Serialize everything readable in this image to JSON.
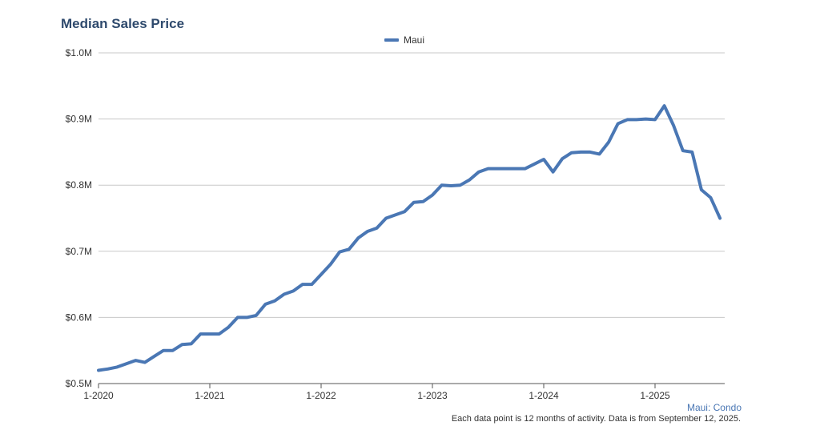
{
  "title": "Median Sales Price",
  "footer": {
    "label": "Maui: Condo",
    "note": "Each data point is 12 months of activity. Data is from September 12, 2025."
  },
  "colors": {
    "series": "#4a77b4",
    "grid": "#c8c8c8",
    "axis": "#555555",
    "text": "#333333"
  },
  "chart_data": {
    "type": "line",
    "title": "Median Sales Price",
    "xlabel": "",
    "ylabel": "",
    "ylim": [
      500000,
      1000000
    ],
    "grid": true,
    "legend_position": "top-center",
    "y_ticks": [
      {
        "value": 500000,
        "label": "$0.5M"
      },
      {
        "value": 600000,
        "label": "$0.6M"
      },
      {
        "value": 700000,
        "label": "$0.7M"
      },
      {
        "value": 800000,
        "label": "$0.8M"
      },
      {
        "value": 900000,
        "label": "$0.9M"
      },
      {
        "value": 1000000,
        "label": "$1.0M"
      }
    ],
    "x_ticks": [
      "1-2020",
      "1-2021",
      "1-2022",
      "1-2023",
      "1-2024",
      "1-2025"
    ],
    "x": [
      "1-2020",
      "2-2020",
      "3-2020",
      "4-2020",
      "5-2020",
      "6-2020",
      "7-2020",
      "8-2020",
      "9-2020",
      "10-2020",
      "11-2020",
      "12-2020",
      "1-2021",
      "2-2021",
      "3-2021",
      "4-2021",
      "5-2021",
      "6-2021",
      "7-2021",
      "8-2021",
      "9-2021",
      "10-2021",
      "11-2021",
      "12-2021",
      "1-2022",
      "2-2022",
      "3-2022",
      "4-2022",
      "5-2022",
      "6-2022",
      "7-2022",
      "8-2022",
      "9-2022",
      "10-2022",
      "11-2022",
      "12-2022",
      "1-2023",
      "2-2023",
      "3-2023",
      "4-2023",
      "5-2023",
      "6-2023",
      "7-2023",
      "8-2023",
      "9-2023",
      "10-2023",
      "11-2023",
      "12-2023",
      "1-2024",
      "2-2024",
      "3-2024",
      "4-2024",
      "5-2024",
      "6-2024",
      "7-2024",
      "8-2024",
      "9-2024",
      "10-2024",
      "11-2024",
      "12-2024",
      "1-2025",
      "2-2025",
      "3-2025",
      "4-2025",
      "5-2025",
      "6-2025",
      "7-2025",
      "8-2025"
    ],
    "series": [
      {
        "name": "Maui",
        "values": [
          520000,
          522000,
          525000,
          530000,
          535000,
          532000,
          541000,
          550000,
          550000,
          559000,
          560000,
          575000,
          575000,
          575000,
          585000,
          600000,
          600000,
          603000,
          620000,
          625000,
          635000,
          640000,
          650000,
          650000,
          665000,
          680000,
          699000,
          703000,
          720000,
          730000,
          735000,
          750000,
          755000,
          760000,
          774000,
          775000,
          785000,
          800000,
          799000,
          800000,
          808000,
          820000,
          825000,
          825000,
          825000,
          825000,
          825000,
          832000,
          839000,
          820000,
          840000,
          849000,
          850000,
          850000,
          847000,
          865000,
          893000,
          899000,
          899000,
          900000,
          899000,
          920000,
          890000,
          852000,
          850000,
          793000,
          781000,
          750000
        ]
      }
    ]
  }
}
